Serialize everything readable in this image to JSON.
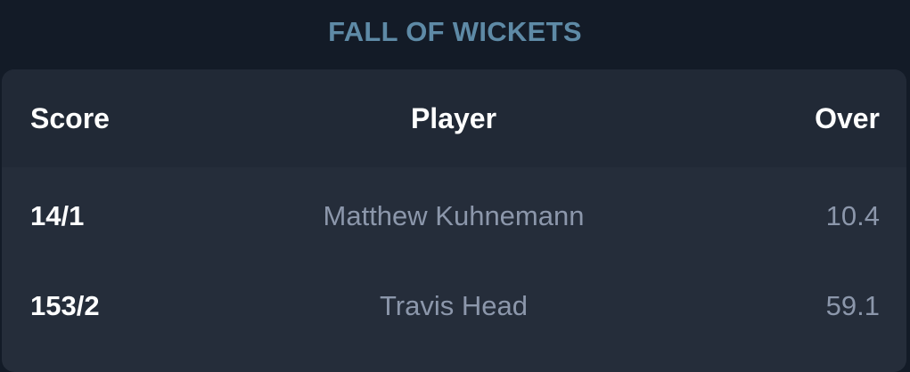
{
  "section": {
    "title": "FALL OF WICKETS"
  },
  "table": {
    "headers": {
      "score": "Score",
      "player": "Player",
      "over": "Over"
    },
    "rows": [
      {
        "score": "14/1",
        "player": "Matthew Kuhnemann",
        "over": "10.4"
      },
      {
        "score": "153/2",
        "player": "Travis Head",
        "over": "59.1"
      }
    ]
  },
  "colors": {
    "page_background": "#131b27",
    "card_background": "#252d3a",
    "header_background": "#212936",
    "title_color": "#5e8aa6",
    "primary_text": "#ffffff",
    "muted_text": "#8c97ab"
  }
}
